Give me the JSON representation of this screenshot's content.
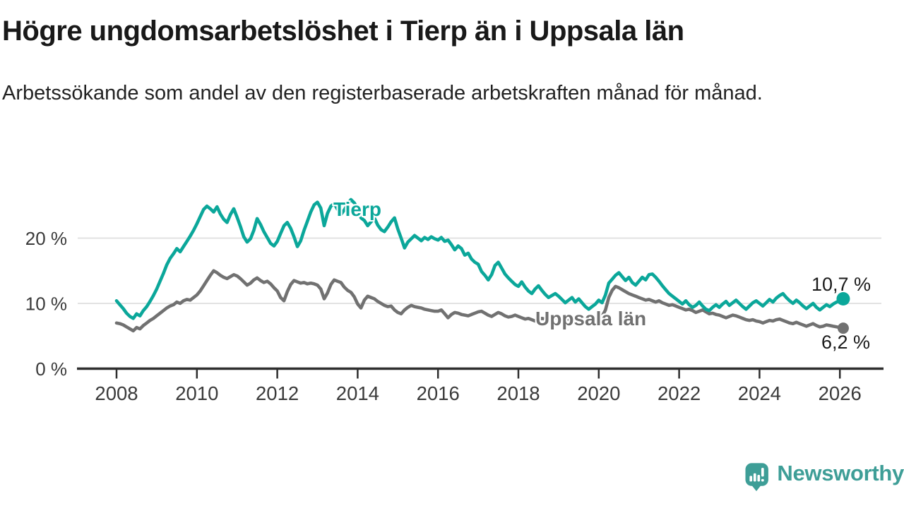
{
  "header": {
    "title": "Högre ungdomsarbetslöshet i Tierp än i Uppsala län",
    "subtitle": "Arbetssökande som andel av den registerbaserade arbetskraften månad för månad."
  },
  "chart_data": {
    "type": "line",
    "x_start_year": 2008,
    "points_per_year": 12,
    "x_tick_years": [
      2008,
      2010,
      2012,
      2014,
      2016,
      2018,
      2020,
      2022,
      2024,
      2026
    ],
    "x_tick_labels": [
      "2008",
      "2010",
      "2012",
      "2014",
      "2016",
      "2018",
      "2020",
      "2022",
      "2024",
      "2026"
    ],
    "y_ticks": [
      {
        "value": 0,
        "label": "0 %"
      },
      {
        "value": 10,
        "label": "10 %"
      },
      {
        "value": 20,
        "label": "20 %"
      }
    ],
    "ylim": [
      0,
      27.5
    ],
    "grid": "horizontal-only",
    "grid_color": "#e2e2e2",
    "axis_color": "#2e2e2e",
    "tick_label_color": "#3a3a3a",
    "legend_position": "inline-labels",
    "series": [
      {
        "name": "Uppsala län",
        "color": "#717171",
        "end_label": "6,2 %",
        "end_value": 6.2,
        "values": [
          7.0,
          6.9,
          6.7,
          6.4,
          6.1,
          5.8,
          6.3,
          6.1,
          6.6,
          7.0,
          7.4,
          7.7,
          8.1,
          8.5,
          8.9,
          9.3,
          9.6,
          9.8,
          10.2,
          10.0,
          10.4,
          10.6,
          10.5,
          10.9,
          11.3,
          11.9,
          12.7,
          13.5,
          14.3,
          15.0,
          14.7,
          14.3,
          14.0,
          13.8,
          14.1,
          14.4,
          14.2,
          13.8,
          13.3,
          12.8,
          13.1,
          13.6,
          13.9,
          13.5,
          13.2,
          13.4,
          13.0,
          12.4,
          11.9,
          10.9,
          10.4,
          11.8,
          12.9,
          13.5,
          13.3,
          13.1,
          13.2,
          13.0,
          13.1,
          13.0,
          12.8,
          12.2,
          10.7,
          11.6,
          12.9,
          13.6,
          13.4,
          13.2,
          12.5,
          12.0,
          11.7,
          11.0,
          9.9,
          9.3,
          10.5,
          11.1,
          10.9,
          10.7,
          10.3,
          10.0,
          9.7,
          9.5,
          9.6,
          9.0,
          8.6,
          8.4,
          9.0,
          9.4,
          9.7,
          9.5,
          9.4,
          9.3,
          9.1,
          9.0,
          8.9,
          8.8,
          8.8,
          9.0,
          8.4,
          7.8,
          8.3,
          8.6,
          8.5,
          8.3,
          8.2,
          8.1,
          8.3,
          8.5,
          8.7,
          8.8,
          8.5,
          8.2,
          8.0,
          8.3,
          8.6,
          8.4,
          8.1,
          7.9,
          8.0,
          8.2,
          8.0,
          7.8,
          7.6,
          7.7,
          7.5,
          7.3,
          7.5,
          7.7,
          7.6,
          7.5,
          7.6,
          7.8,
          7.9,
          7.8,
          7.7,
          7.6,
          7.5,
          7.6,
          7.7,
          7.6,
          7.5,
          7.4,
          7.5,
          7.7,
          7.9,
          8.0,
          9.0,
          10.9,
          12.0,
          12.6,
          12.4,
          12.1,
          11.8,
          11.5,
          11.3,
          11.1,
          10.9,
          10.7,
          10.5,
          10.6,
          10.4,
          10.2,
          10.4,
          10.1,
          9.9,
          9.7,
          9.8,
          9.6,
          9.4,
          9.2,
          9.0,
          9.1,
          8.9,
          8.6,
          8.8,
          9.0,
          8.7,
          8.4,
          8.5,
          8.3,
          8.2,
          8.0,
          7.8,
          8.0,
          8.2,
          8.1,
          7.9,
          7.7,
          7.5,
          7.4,
          7.5,
          7.3,
          7.2,
          7.0,
          7.2,
          7.4,
          7.3,
          7.5,
          7.6,
          7.4,
          7.2,
          7.0,
          6.9,
          7.1,
          6.9,
          6.7,
          6.5,
          6.7,
          6.9,
          6.6,
          6.4,
          6.5,
          6.7,
          6.6,
          6.5,
          6.4,
          6.3,
          6.2
        ]
      },
      {
        "name": "Tierp",
        "color": "#0ba79a",
        "end_label": "10,7 %",
        "end_value": 10.7,
        "values": [
          10.4,
          9.8,
          9.2,
          8.5,
          8.0,
          7.7,
          8.4,
          8.1,
          8.9,
          9.5,
          10.3,
          11.2,
          12.2,
          13.4,
          14.6,
          15.9,
          16.9,
          17.6,
          18.4,
          17.9,
          18.7,
          19.5,
          20.3,
          21.2,
          22.2,
          23.3,
          24.4,
          24.9,
          24.5,
          24.0,
          24.8,
          23.7,
          22.9,
          22.4,
          23.6,
          24.5,
          23.2,
          21.8,
          20.2,
          19.4,
          19.9,
          21.2,
          23.0,
          22.1,
          21.0,
          20.1,
          19.2,
          18.8,
          19.5,
          20.7,
          21.9,
          22.4,
          21.5,
          20.2,
          18.7,
          19.6,
          21.2,
          22.6,
          24.0,
          25.1,
          25.5,
          24.6,
          21.9,
          23.8,
          24.9,
          25.3,
          24.4,
          23.6,
          24.3,
          25.2,
          25.9,
          25.4,
          24.4,
          23.1,
          22.7,
          21.9,
          22.5,
          23.1,
          22.0,
          21.3,
          21.0,
          21.7,
          22.5,
          23.1,
          21.4,
          20.0,
          18.5,
          19.4,
          19.9,
          20.4,
          20.0,
          19.6,
          20.1,
          19.8,
          20.2,
          19.9,
          19.7,
          20.1,
          19.5,
          19.7,
          19.0,
          18.2,
          18.8,
          18.4,
          17.4,
          17.7,
          16.8,
          16.3,
          16.0,
          14.9,
          14.3,
          13.6,
          14.4,
          15.8,
          16.3,
          15.4,
          14.5,
          13.9,
          13.4,
          12.9,
          12.6,
          13.3,
          12.5,
          11.9,
          11.5,
          12.2,
          12.7,
          12.0,
          11.4,
          10.9,
          11.2,
          11.5,
          11.1,
          10.6,
          10.1,
          10.5,
          10.9,
          10.2,
          10.7,
          10.1,
          9.5,
          9.1,
          9.5,
          9.9,
          10.5,
          10.1,
          11.3,
          13.1,
          13.7,
          14.3,
          14.7,
          14.1,
          13.5,
          14.0,
          13.2,
          12.8,
          13.4,
          14.0,
          13.6,
          14.4,
          14.5,
          14.0,
          13.4,
          12.7,
          12.1,
          11.5,
          11.1,
          10.7,
          10.3,
          9.9,
          10.4,
          9.8,
          9.4,
          9.7,
          10.2,
          9.6,
          9.1,
          8.9,
          9.4,
          9.8,
          9.4,
          9.9,
          10.3,
          9.7,
          10.1,
          10.5,
          10.0,
          9.5,
          9.1,
          9.6,
          10.1,
          10.4,
          10.0,
          9.6,
          10.1,
          10.6,
          10.2,
          10.8,
          11.2,
          11.5,
          10.9,
          10.4,
          10.0,
          10.5,
          10.1,
          9.6,
          9.2,
          9.6,
          10.0,
          9.4,
          9.0,
          9.4,
          9.8,
          9.5,
          9.9,
          10.2,
          10.4,
          10.7
        ]
      }
    ]
  },
  "branding": {
    "logo_text": "Newsworthy",
    "logo_color": "#3e9e97"
  }
}
